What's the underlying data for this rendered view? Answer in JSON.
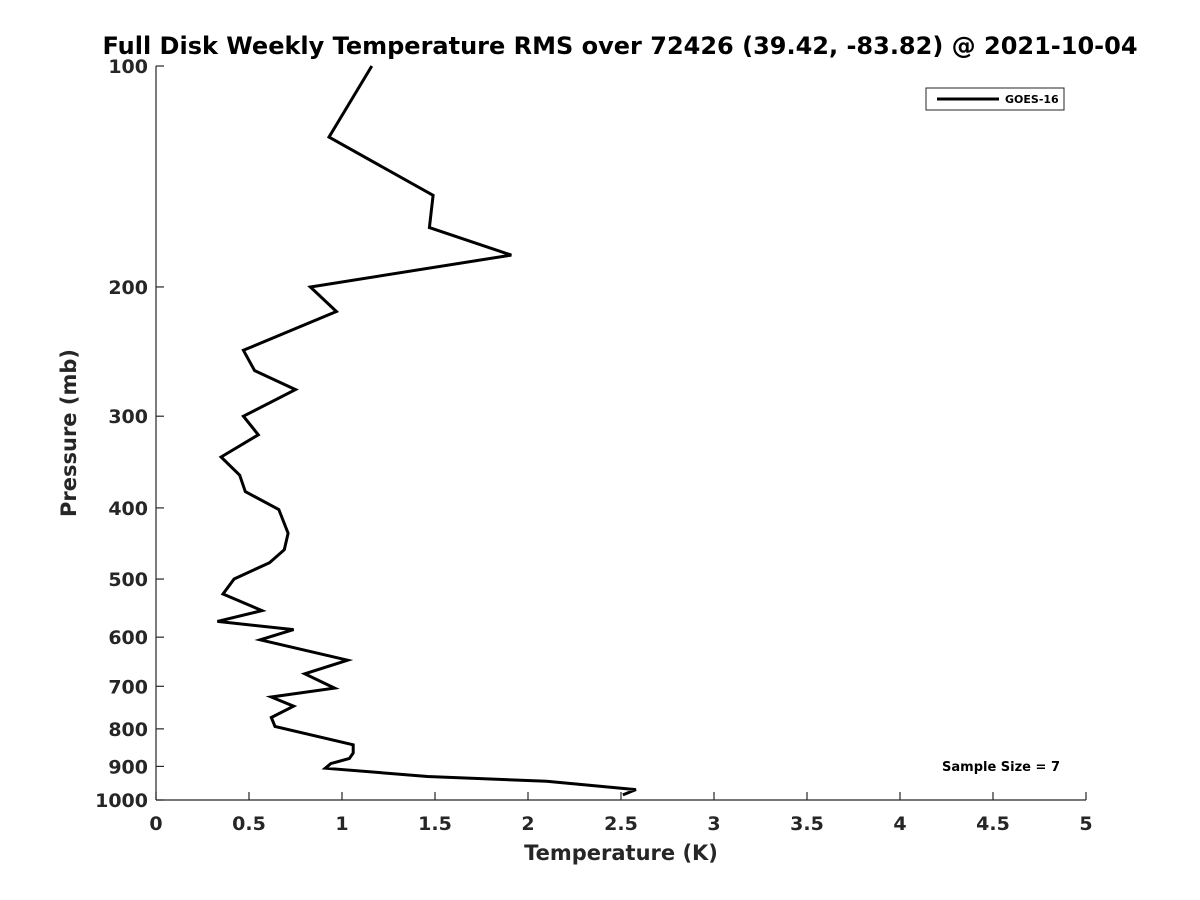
{
  "chart_data": {
    "type": "line",
    "title": "Full Disk Weekly Temperature RMS over 72426 (39.42, -83.82) @ 2021-10-04",
    "xlabel": "Temperature (K)",
    "ylabel": "Pressure (mb)",
    "xlim": [
      0,
      5
    ],
    "ylim": [
      100,
      1000
    ],
    "y_scale": "log",
    "y_reversed": true,
    "xticks": [
      0,
      0.5,
      1,
      1.5,
      2,
      2.5,
      3,
      3.5,
      4,
      4.5,
      5
    ],
    "xtick_labels": [
      "0",
      "0.5",
      "1",
      "1.5",
      "2",
      "2.5",
      "3",
      "3.5",
      "4",
      "4.5",
      "5"
    ],
    "yticks": [
      100,
      200,
      300,
      400,
      500,
      600,
      700,
      800,
      900,
      1000
    ],
    "ytick_labels": [
      "100",
      "200",
      "300",
      "400",
      "500",
      "600",
      "700",
      "800",
      "900",
      "1000"
    ],
    "grid": false,
    "legend_position": "top-right",
    "series": [
      {
        "name": "GOES-16",
        "color": "#000000",
        "points": [
          [
            1.16,
            100
          ],
          [
            0.93,
            125
          ],
          [
            1.49,
            150
          ],
          [
            1.47,
            166
          ],
          [
            1.91,
            181
          ],
          [
            0.83,
            200
          ],
          [
            0.97,
            216
          ],
          [
            0.47,
            244
          ],
          [
            0.53,
            260
          ],
          [
            0.75,
            276
          ],
          [
            0.47,
            300
          ],
          [
            0.55,
            318
          ],
          [
            0.35,
            341
          ],
          [
            0.45,
            361
          ],
          [
            0.48,
            380
          ],
          [
            0.66,
            402
          ],
          [
            0.71,
            433
          ],
          [
            0.69,
            456
          ],
          [
            0.61,
            475
          ],
          [
            0.42,
            500
          ],
          [
            0.36,
            524
          ],
          [
            0.57,
            552
          ],
          [
            0.33,
            571
          ],
          [
            0.74,
            586
          ],
          [
            0.56,
            605
          ],
          [
            1.03,
            645
          ],
          [
            0.8,
            673
          ],
          [
            0.96,
            704
          ],
          [
            0.62,
            724
          ],
          [
            0.74,
            745
          ],
          [
            0.62,
            772
          ],
          [
            0.64,
            794
          ],
          [
            1.06,
            841
          ],
          [
            1.06,
            863
          ],
          [
            1.04,
            878
          ],
          [
            0.94,
            892
          ],
          [
            0.91,
            905
          ],
          [
            1.46,
            929
          ],
          [
            2.1,
            943
          ],
          [
            2.58,
            968
          ],
          [
            2.51,
            984
          ]
        ]
      }
    ],
    "annotation": "Sample Size = 7"
  }
}
